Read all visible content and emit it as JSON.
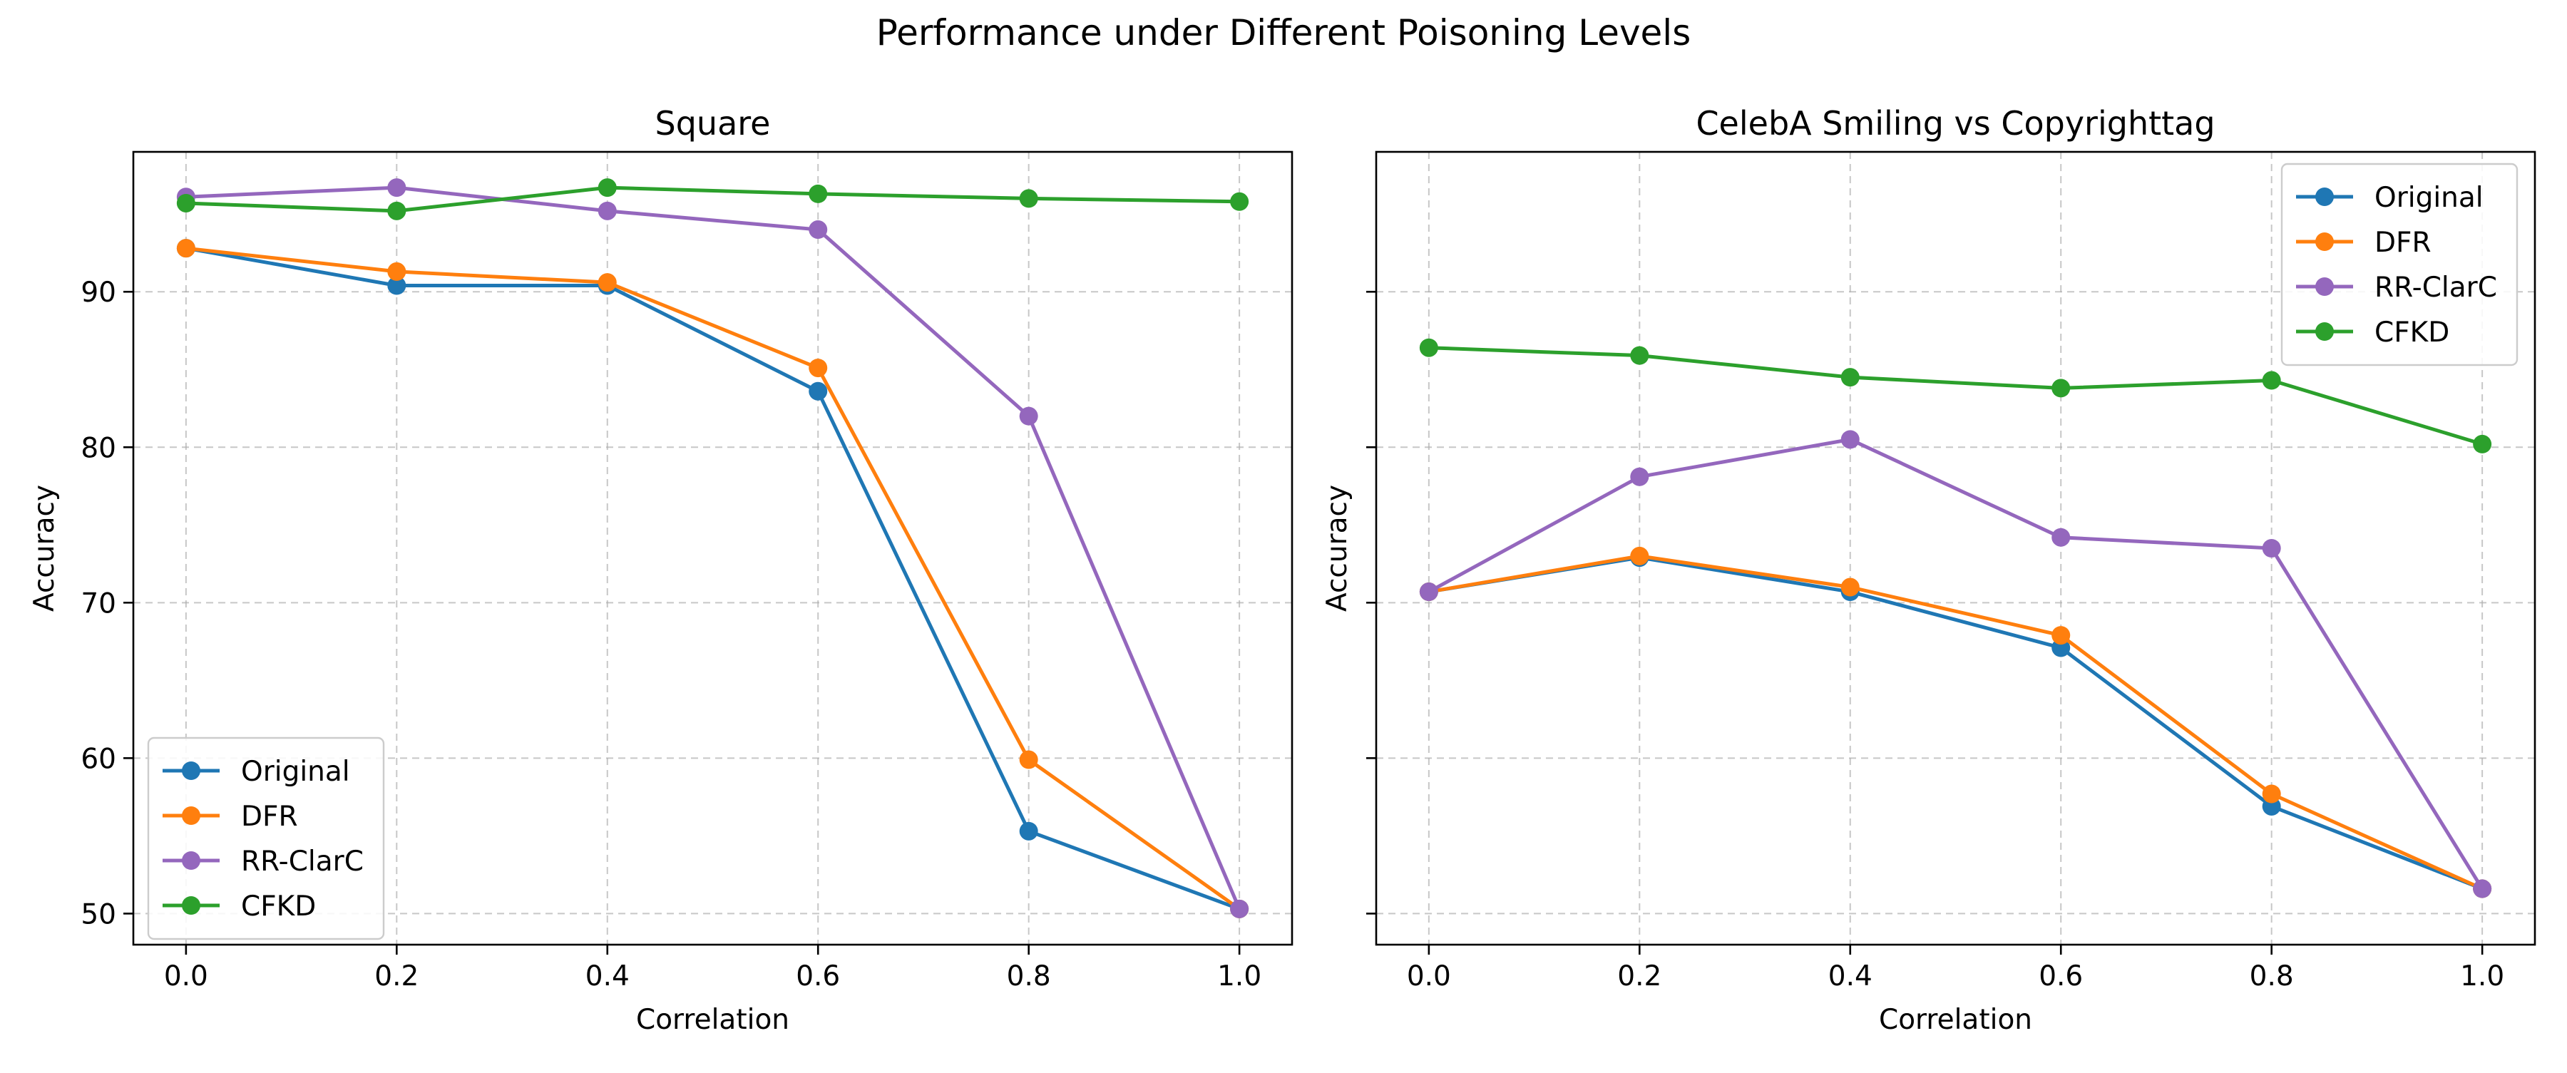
{
  "figure": {
    "suptitle": "Performance under Different Poisoning Levels"
  },
  "colors": {
    "Original": "#1f77b4",
    "DFR": "#ff7f0e",
    "RR-ClarC": "#9467bd",
    "CFKD": "#2ca02c"
  },
  "chart_data": [
    {
      "type": "line",
      "title": "Square",
      "xlabel": "Correlation",
      "ylabel": "Accuracy",
      "x": [
        0.0,
        0.2,
        0.4,
        0.6,
        0.8,
        1.0
      ],
      "x_tick_labels": [
        "0.0",
        "0.2",
        "0.4",
        "0.6",
        "0.8",
        "1.0"
      ],
      "y_ticks": [
        50,
        60,
        70,
        80,
        90
      ],
      "y_tick_labels": [
        "50",
        "60",
        "70",
        "80",
        "90"
      ],
      "xlim": [
        -0.05,
        1.05
      ],
      "ylim": [
        48.0,
        99.0
      ],
      "grid": true,
      "legend_position": "lower-left",
      "series": [
        {
          "name": "Original",
          "values": [
            92.8,
            90.4,
            90.4,
            83.6,
            55.3,
            50.3
          ]
        },
        {
          "name": "DFR",
          "values": [
            92.8,
            91.3,
            90.6,
            85.1,
            59.9,
            50.3
          ]
        },
        {
          "name": "RR-ClarC",
          "values": [
            96.1,
            96.7,
            95.2,
            94.0,
            82.0,
            50.3
          ]
        },
        {
          "name": "CFKD",
          "values": [
            95.7,
            95.2,
            96.7,
            96.3,
            96.0,
            95.8
          ]
        }
      ]
    },
    {
      "type": "line",
      "title": "CelebA Smiling vs Copyrighttag",
      "xlabel": "Correlation",
      "ylabel": "Accuracy",
      "x": [
        0.0,
        0.2,
        0.4,
        0.6,
        0.8,
        1.0
      ],
      "x_tick_labels": [
        "0.0",
        "0.2",
        "0.4",
        "0.6",
        "0.8",
        "1.0"
      ],
      "y_ticks": [
        50,
        60,
        70,
        80,
        90
      ],
      "y_tick_labels": [
        "",
        "",
        "",
        "",
        ""
      ],
      "xlim": [
        -0.05,
        1.05
      ],
      "ylim": [
        48.0,
        99.0
      ],
      "grid": true,
      "legend_position": "upper-right",
      "series": [
        {
          "name": "Original",
          "values": [
            70.7,
            72.9,
            70.7,
            67.1,
            56.9,
            51.6
          ]
        },
        {
          "name": "DFR",
          "values": [
            70.7,
            73.0,
            71.0,
            67.9,
            57.7,
            51.6
          ]
        },
        {
          "name": "RR-ClarC",
          "values": [
            70.7,
            78.1,
            80.5,
            74.2,
            73.5,
            51.6
          ]
        },
        {
          "name": "CFKD",
          "values": [
            86.4,
            85.9,
            84.5,
            83.8,
            84.3,
            80.2
          ]
        }
      ]
    }
  ]
}
